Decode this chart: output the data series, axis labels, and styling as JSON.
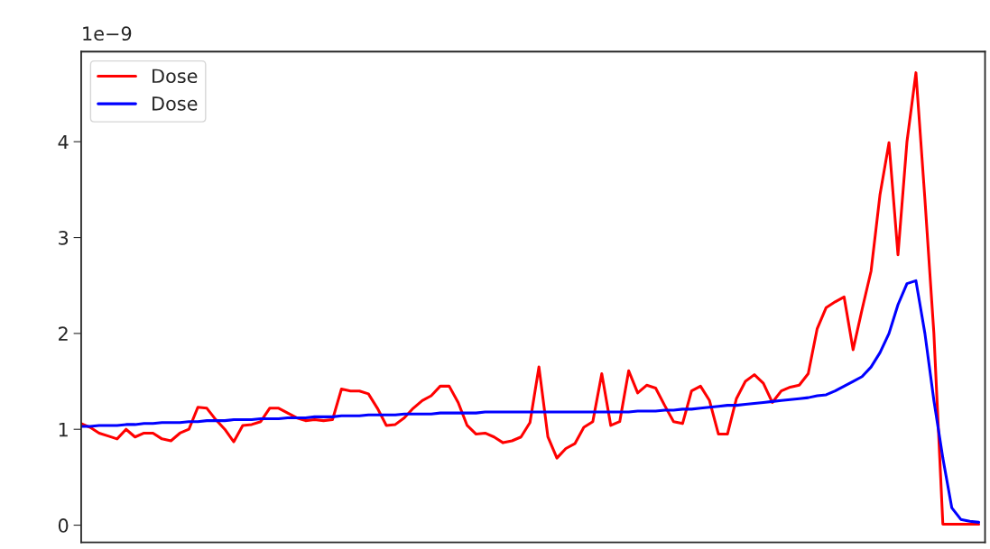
{
  "chart_data": {
    "type": "line",
    "categories": [
      null,
      null,
      null,
      null,
      null,
      null,
      null,
      null,
      null,
      null,
      null,
      null,
      null,
      null,
      null,
      null,
      null,
      null,
      null,
      null,
      null,
      null,
      null,
      null,
      null,
      null,
      null,
      null,
      null,
      null,
      null,
      null,
      null,
      null,
      null,
      null,
      null,
      null,
      null,
      null,
      null,
      null,
      null,
      null,
      null,
      null,
      null,
      null,
      null,
      null,
      null,
      null,
      null,
      null,
      null,
      null,
      null,
      null,
      null,
      null,
      null,
      null,
      null,
      null,
      null,
      null,
      null,
      null,
      null,
      null,
      null,
      null,
      null,
      null,
      null,
      null,
      null,
      null,
      null,
      null,
      null,
      null,
      null,
      null,
      null,
      null,
      null,
      null,
      null,
      null,
      null,
      null,
      null,
      null,
      null,
      null,
      null,
      null,
      null,
      null,
      null
    ],
    "series": [
      {
        "name": "Dose",
        "color": "#ff0000",
        "values": [
          1.06,
          1.02,
          0.96,
          0.93,
          0.9,
          1.0,
          0.92,
          0.96,
          0.96,
          0.9,
          0.88,
          0.96,
          1.0,
          1.23,
          1.22,
          1.1,
          1.0,
          0.87,
          1.04,
          1.05,
          1.08,
          1.22,
          1.22,
          1.17,
          1.12,
          1.09,
          1.1,
          1.09,
          1.1,
          1.42,
          1.4,
          1.4,
          1.37,
          1.22,
          1.04,
          1.05,
          1.12,
          1.22,
          1.3,
          1.35,
          1.45,
          1.45,
          1.28,
          1.04,
          0.95,
          0.96,
          0.92,
          0.86,
          0.88,
          0.92,
          1.07,
          1.65,
          0.92,
          0.7,
          0.8,
          0.85,
          1.02,
          1.08,
          1.58,
          1.04,
          1.08,
          1.61,
          1.38,
          1.46,
          1.43,
          1.25,
          1.08,
          1.06,
          1.4,
          1.45,
          1.3,
          0.95,
          0.95,
          1.32,
          1.5,
          1.57,
          1.48,
          1.28,
          1.4,
          1.44,
          1.46,
          1.58,
          2.05,
          2.27,
          2.33,
          2.38,
          1.83,
          2.25,
          2.65,
          3.45,
          3.99,
          2.82,
          4.0,
          4.72,
          3.4,
          2.0,
          0.01,
          0.01,
          0.01,
          0.01,
          0.01
        ]
      },
      {
        "name": "Dose",
        "color": "#0000ff",
        "values": [
          1.03,
          1.03,
          1.04,
          1.04,
          1.04,
          1.05,
          1.05,
          1.06,
          1.06,
          1.07,
          1.07,
          1.07,
          1.08,
          1.08,
          1.09,
          1.09,
          1.09,
          1.1,
          1.1,
          1.1,
          1.11,
          1.11,
          1.11,
          1.12,
          1.12,
          1.12,
          1.13,
          1.13,
          1.13,
          1.14,
          1.14,
          1.14,
          1.15,
          1.15,
          1.15,
          1.15,
          1.16,
          1.16,
          1.16,
          1.16,
          1.17,
          1.17,
          1.17,
          1.17,
          1.17,
          1.18,
          1.18,
          1.18,
          1.18,
          1.18,
          1.18,
          1.18,
          1.18,
          1.18,
          1.18,
          1.18,
          1.18,
          1.18,
          1.18,
          1.18,
          1.18,
          1.18,
          1.19,
          1.19,
          1.19,
          1.2,
          1.2,
          1.21,
          1.21,
          1.22,
          1.23,
          1.24,
          1.25,
          1.25,
          1.26,
          1.27,
          1.28,
          1.29,
          1.3,
          1.31,
          1.32,
          1.33,
          1.35,
          1.36,
          1.4,
          1.45,
          1.5,
          1.55,
          1.65,
          1.8,
          2.0,
          2.3,
          2.52,
          2.55,
          2.0,
          1.3,
          0.7,
          0.18,
          0.06,
          0.04,
          0.03
        ]
      }
    ],
    "ylim": [
      -0.18,
      4.94
    ],
    "yticks": [
      0,
      1,
      2,
      3,
      4
    ],
    "annotations": [
      "1e−9"
    ],
    "legend": "top left",
    "grid": false,
    "tick_labels": "y"
  }
}
